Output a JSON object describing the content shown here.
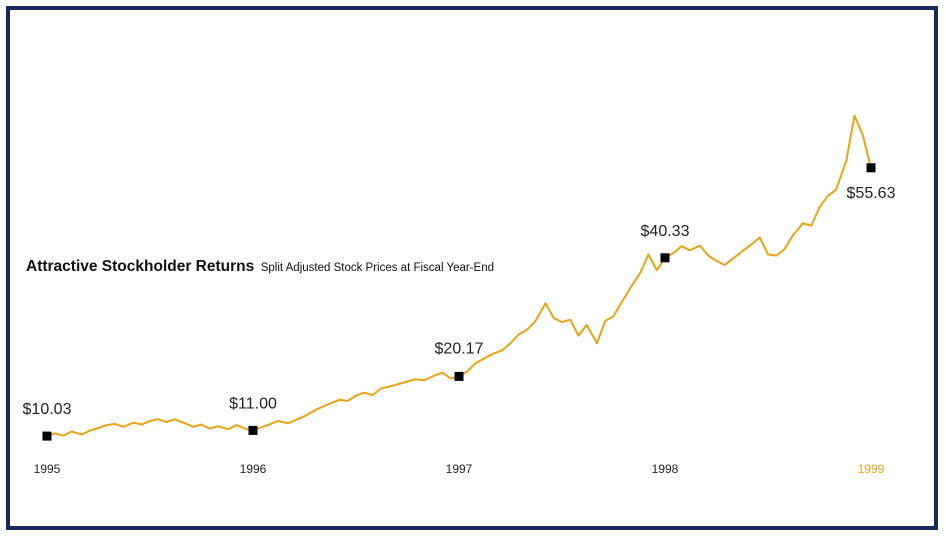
{
  "chart_data": {
    "type": "line",
    "title": "Attractive Stockholder Returns",
    "subtitle": "Split Adjusted Stock Prices at Fiscal Year-End",
    "xlabel": "",
    "ylabel": "",
    "x_ticks": [
      "1995",
      "1996",
      "1997",
      "1998",
      "1999"
    ],
    "highlight_tick": "1999",
    "xlim": [
      1995.0,
      1999.0
    ],
    "ylim": [
      8,
      68
    ],
    "grid": false,
    "line_color": "#e8a317",
    "marker_color": "#000000",
    "series": [
      {
        "values": [
          [
            1995.0,
            10.03
          ],
          [
            1995.04,
            10.5
          ],
          [
            1995.08,
            10.1
          ],
          [
            1995.12,
            10.8
          ],
          [
            1995.17,
            10.3
          ],
          [
            1995.21,
            11.0
          ],
          [
            1995.25,
            11.4
          ],
          [
            1995.29,
            11.9
          ],
          [
            1995.33,
            12.1
          ],
          [
            1995.37,
            11.6
          ],
          [
            1995.42,
            12.3
          ],
          [
            1995.46,
            12.0
          ],
          [
            1995.5,
            12.6
          ],
          [
            1995.54,
            12.9
          ],
          [
            1995.58,
            12.4
          ],
          [
            1995.62,
            12.9
          ],
          [
            1995.67,
            12.2
          ],
          [
            1995.71,
            11.6
          ],
          [
            1995.75,
            12.0
          ],
          [
            1995.79,
            11.3
          ],
          [
            1995.83,
            11.7
          ],
          [
            1995.88,
            11.2
          ],
          [
            1995.92,
            11.9
          ],
          [
            1995.96,
            11.3
          ],
          [
            1996.0,
            11.0
          ],
          [
            1996.04,
            11.5
          ],
          [
            1996.08,
            12.0
          ],
          [
            1996.12,
            12.6
          ],
          [
            1996.17,
            12.2
          ],
          [
            1996.21,
            12.8
          ],
          [
            1996.25,
            13.4
          ],
          [
            1996.29,
            14.2
          ],
          [
            1996.33,
            14.9
          ],
          [
            1996.37,
            15.5
          ],
          [
            1996.42,
            16.2
          ],
          [
            1996.46,
            16.0
          ],
          [
            1996.5,
            16.9
          ],
          [
            1996.54,
            17.4
          ],
          [
            1996.58,
            17.0
          ],
          [
            1996.62,
            18.1
          ],
          [
            1996.67,
            18.5
          ],
          [
            1996.71,
            18.9
          ],
          [
            1996.75,
            19.3
          ],
          [
            1996.79,
            19.7
          ],
          [
            1996.83,
            19.5
          ],
          [
            1996.88,
            20.3
          ],
          [
            1996.92,
            20.8
          ],
          [
            1996.96,
            19.8
          ],
          [
            1997.0,
            20.17
          ],
          [
            1997.04,
            21.0
          ],
          [
            1997.08,
            22.4
          ],
          [
            1997.12,
            23.2
          ],
          [
            1997.17,
            24.1
          ],
          [
            1997.21,
            24.6
          ],
          [
            1997.25,
            25.8
          ],
          [
            1997.29,
            27.3
          ],
          [
            1997.33,
            28.1
          ],
          [
            1997.37,
            29.5
          ],
          [
            1997.42,
            32.6
          ],
          [
            1997.46,
            30.1
          ],
          [
            1997.5,
            29.4
          ],
          [
            1997.54,
            29.8
          ],
          [
            1997.58,
            27.1
          ],
          [
            1997.62,
            28.9
          ],
          [
            1997.67,
            25.8
          ],
          [
            1997.71,
            29.6
          ],
          [
            1997.75,
            30.4
          ],
          [
            1997.79,
            32.8
          ],
          [
            1997.83,
            35.1
          ],
          [
            1997.88,
            37.8
          ],
          [
            1997.92,
            40.9
          ],
          [
            1997.96,
            38.2
          ],
          [
            1998.0,
            40.33
          ],
          [
            1998.04,
            41.1
          ],
          [
            1998.08,
            42.3
          ],
          [
            1998.12,
            41.6
          ],
          [
            1998.17,
            42.4
          ],
          [
            1998.21,
            40.7
          ],
          [
            1998.25,
            39.8
          ],
          [
            1998.29,
            39.1
          ],
          [
            1998.33,
            40.2
          ],
          [
            1998.37,
            41.3
          ],
          [
            1998.42,
            42.6
          ],
          [
            1998.46,
            43.8
          ],
          [
            1998.5,
            40.9
          ],
          [
            1998.54,
            40.7
          ],
          [
            1998.58,
            41.8
          ],
          [
            1998.62,
            44.1
          ],
          [
            1998.67,
            46.2
          ],
          [
            1998.71,
            45.8
          ],
          [
            1998.75,
            48.9
          ],
          [
            1998.79,
            50.8
          ],
          [
            1998.83,
            51.9
          ],
          [
            1998.88,
            56.8
          ],
          [
            1998.92,
            64.5
          ],
          [
            1998.96,
            61.2
          ],
          [
            1999.0,
            55.63
          ]
        ]
      }
    ],
    "annotations": [
      {
        "x": 1995.0,
        "y": 10.03,
        "label": "$10.03"
      },
      {
        "x": 1996.0,
        "y": 11.0,
        "label": "$11.00"
      },
      {
        "x": 1997.0,
        "y": 20.17,
        "label": "$20.17"
      },
      {
        "x": 1998.0,
        "y": 40.33,
        "label": "$40.33"
      },
      {
        "x": 1999.0,
        "y": 55.63,
        "label": "$55.63"
      }
    ]
  }
}
